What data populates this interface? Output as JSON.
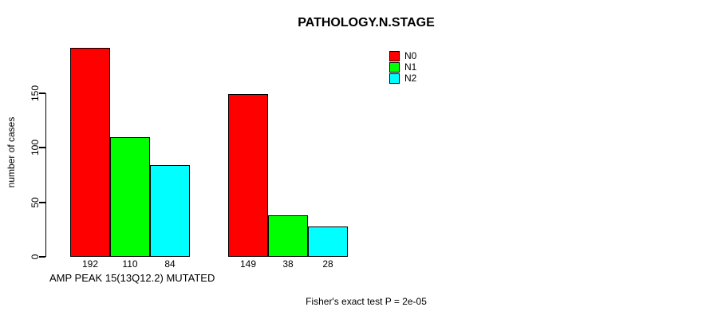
{
  "chart_data": {
    "type": "bar",
    "title": "PATHOLOGY.N.STAGE",
    "ylabel": "number of cases",
    "xlabel": "AMP PEAK 15(13Q12.2) MUTATED",
    "footnote": "Fisher's exact test P = 2e-05",
    "ylim": [
      0,
      195
    ],
    "yticks": [
      0,
      50,
      100,
      150
    ],
    "grid": false,
    "legend_position": "top-right",
    "legend": [
      {
        "label": "N0",
        "color": "#FF0000"
      },
      {
        "label": "N1",
        "color": "#00FF00"
      },
      {
        "label": "N2",
        "color": "#00FFFF"
      }
    ],
    "series_colors": [
      "#FF0000",
      "#00FF00",
      "#00FFFF"
    ],
    "groups": [
      {
        "values": [
          192,
          110,
          84
        ],
        "bar_labels": [
          "192",
          "110",
          "84"
        ]
      },
      {
        "values": [
          149,
          38,
          28
        ],
        "bar_labels": [
          "149",
          "38",
          "28"
        ]
      }
    ],
    "axis_color": "#000000",
    "background_color": "#FFFFFF"
  }
}
